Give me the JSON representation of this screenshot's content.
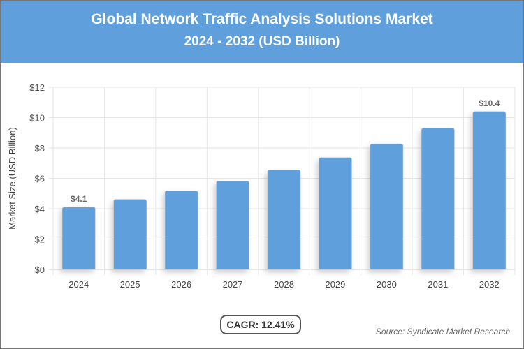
{
  "header": {
    "title": "Global Network Traffic Analysis Solutions Market",
    "subtitle": "2024 - 2032 (USD Billion)"
  },
  "chart_data": {
    "type": "bar",
    "title": "Global Network Traffic Analysis Solutions Market",
    "subtitle": "2024 - 2032 (USD Billion)",
    "xlabel": "",
    "ylabel": "Market Size (USD Billion)",
    "categories": [
      "2024",
      "2025",
      "2026",
      "2027",
      "2028",
      "2029",
      "2030",
      "2031",
      "2032"
    ],
    "values": [
      4.1,
      4.61,
      5.18,
      5.82,
      6.55,
      7.36,
      8.27,
      9.3,
      10.4
    ],
    "data_labels": {
      "0": "$4.1",
      "8": "$10.4"
    },
    "ylim": [
      0,
      12
    ],
    "yticks": [
      0,
      2,
      4,
      6,
      8,
      10,
      12
    ],
    "ytick_labels": [
      "$0",
      "$2",
      "$4",
      "$6",
      "$8",
      "$10",
      "$12"
    ],
    "grid": true,
    "bar_color": "#5e9fdc"
  },
  "footer": {
    "cagr": "CAGR: 12.41%",
    "source": "Source: Syndicate Market Research"
  }
}
